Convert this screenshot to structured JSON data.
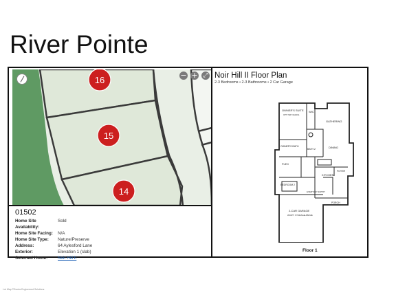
{
  "page": {
    "title": "River Pointe",
    "footer": "Lot Map ©Zonda Engineered Solutions"
  },
  "map": {
    "lots": [
      {
        "number": "16"
      },
      {
        "number": "15"
      },
      {
        "number": "14"
      }
    ],
    "controls": {
      "zoom_out": "−",
      "zoom_in": "+",
      "fullscreen": "⤢"
    },
    "colors": {
      "lot_fill": "#dfe8d9",
      "lot_border": "#3a3a3a",
      "green_space": "#5f9a63",
      "road": "#eef2ec",
      "marker": "#cc1f1f"
    }
  },
  "lot_info": {
    "id": "01502",
    "fields": [
      {
        "label": "Home Site Availability:",
        "value": "Sold"
      },
      {
        "label": "Home Site Facing:",
        "value": "N/A"
      },
      {
        "label": "Home Site Type:",
        "value": "Nature/Preserve"
      },
      {
        "label": "Address:",
        "value": "64 Aylesford Lane"
      },
      {
        "label": "Exterior:",
        "value": "Elevation 1 (slab)"
      },
      {
        "label": "Selected Home:",
        "value": "Noir Hill II"
      }
    ]
  },
  "floor_plan": {
    "title": "Noir Hill II Floor Plan",
    "subtitle": "2-3 Bedrooms • 2-3 Bathrooms • 2 Car Garage",
    "floor_label": "Floor 1",
    "rooms": {
      "owners_suite": "OWNER'S SUITE",
      "owners_suite_note": "OPT. TRAY CEILING",
      "wic": "WIC",
      "gathering": "GATHERING",
      "dining": "DINING",
      "bath2": "BATH 2",
      "owners_bath": "OWNER'S BATH",
      "flex": "FLEX",
      "foyer": "FOYER",
      "kitchen": "KITCHEN",
      "bedroom2": "BEDROOM 2",
      "everyday_entry": "EVERYDAY ENTRY",
      "porch": "PORCH",
      "garage": "2-CAR GARAGE",
      "garage_note": "W/OPT. STORAGE ABOVE"
    }
  }
}
